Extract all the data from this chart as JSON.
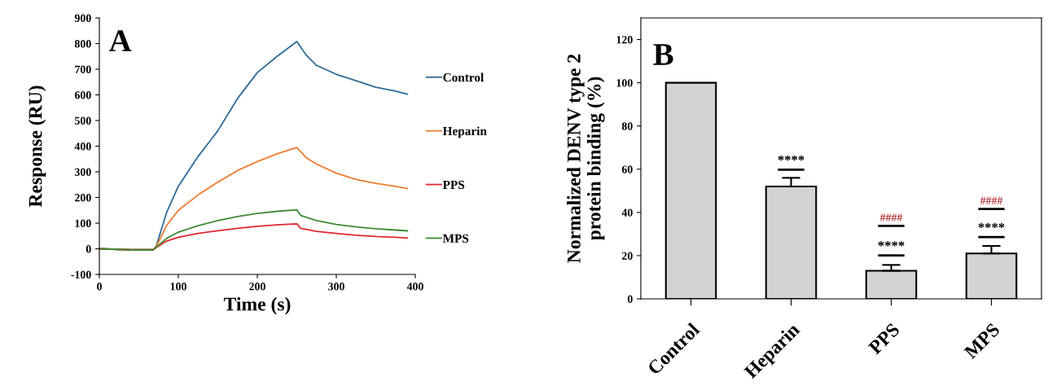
{
  "chart_data": [
    {
      "type": "line",
      "xlabel": "Time (s)",
      "ylabel": "Response (RU)",
      "annotations": [
        "A"
      ],
      "xlim": [
        0,
        400
      ],
      "xticks": [
        0,
        100,
        200,
        300,
        400
      ],
      "ylim": [
        -100,
        900
      ],
      "yticks": [
        -100,
        0,
        100,
        200,
        300,
        400,
        500,
        600,
        700,
        800,
        900
      ],
      "grid": false,
      "legend": "right",
      "marker": "none",
      "line_style": "solid",
      "series": [
        {
          "name": "Control",
          "color": "#2e6b96",
          "x": [
            0,
            40,
            68,
            72,
            85,
            100,
            125,
            150,
            175,
            200,
            225,
            250,
            262,
            275,
            300,
            325,
            350,
            375,
            390
          ],
          "values": [
            0,
            -4,
            -4,
            10,
            140,
            244,
            360,
            460,
            586,
            687,
            750,
            808,
            755,
            715,
            680,
            655,
            630,
            615,
            603
          ]
        },
        {
          "name": "Heparin",
          "color": "#ee7d31",
          "x": [
            0,
            40,
            68,
            72,
            85,
            100,
            125,
            150,
            175,
            200,
            225,
            250,
            262,
            275,
            300,
            325,
            350,
            375,
            390
          ],
          "values": [
            0,
            -4,
            -4,
            8,
            90,
            150,
            210,
            260,
            305,
            340,
            370,
            395,
            355,
            330,
            295,
            270,
            255,
            243,
            235
          ]
        },
        {
          "name": "PPS",
          "color": "#e0282e",
          "x": [
            0,
            40,
            68,
            72,
            85,
            100,
            125,
            150,
            175,
            200,
            225,
            250,
            255,
            275,
            300,
            325,
            350,
            375,
            390
          ],
          "values": [
            0,
            -4,
            -4,
            5,
            30,
            45,
            60,
            70,
            80,
            88,
            93,
            97,
            80,
            68,
            60,
            53,
            48,
            45,
            42
          ]
        },
        {
          "name": "MPS",
          "color": "#3f8a35",
          "x": [
            0,
            40,
            68,
            72,
            85,
            100,
            125,
            150,
            175,
            200,
            225,
            250,
            255,
            275,
            300,
            325,
            350,
            375,
            390
          ],
          "values": [
            0,
            -4,
            -4,
            6,
            40,
            65,
            90,
            110,
            126,
            138,
            146,
            152,
            130,
            110,
            95,
            85,
            78,
            73,
            70
          ]
        }
      ]
    },
    {
      "type": "bar",
      "ylabel": "Normalized DENV type 2\nprotein binding (%)",
      "categories": [
        "Control",
        "Heparin",
        "PPS",
        "MPS"
      ],
      "values": [
        100,
        52,
        13,
        21
      ],
      "errors": [
        null,
        [
          52,
          56
        ],
        [
          13,
          15.7
        ],
        [
          21,
          24.5
        ]
      ],
      "color": "#d3d3d3",
      "ylim": [
        0,
        130
      ],
      "yticks": [
        0,
        20,
        40,
        60,
        80,
        100,
        120
      ],
      "grid": false,
      "annotations": [
        "B",
        "****",
        "****",
        "####",
        "****",
        "####"
      ]
    }
  ]
}
